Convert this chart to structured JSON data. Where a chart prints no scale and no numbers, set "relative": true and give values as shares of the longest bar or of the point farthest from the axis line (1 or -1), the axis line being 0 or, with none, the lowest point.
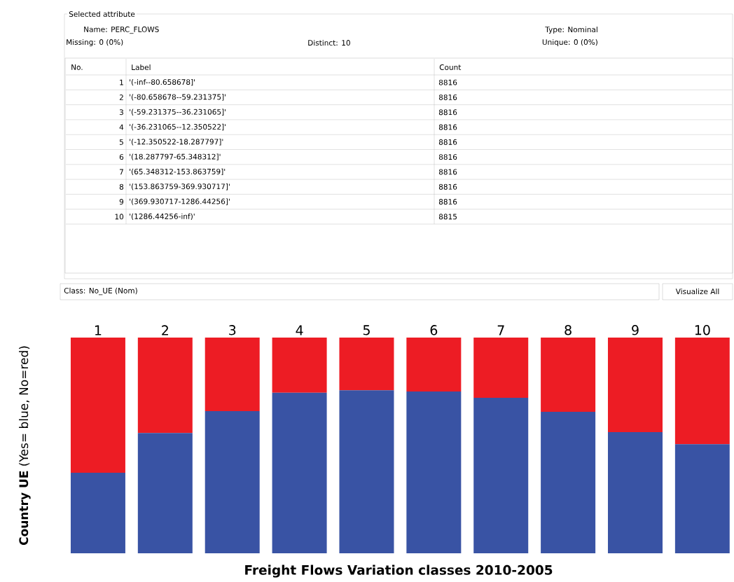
{
  "chart_data": [
    {
      "type": "heatmap",
      "title": "Selected attribute",
      "annotations": [
        "Name: PERC_FLOWS",
        "Type: Nominal",
        "Missing: 0 (0%)",
        "Distinct: 10",
        "Unique: 0 (0%)",
        "No.",
        "Label",
        "Class: No_UE (Nom)",
        "Visualize All"
      ],
      "categories": [
        "Count"
      ],
      "y_categories": [
        "1",
        "2",
        "3",
        "4",
        "5",
        "6",
        "7",
        "8",
        "9",
        "10"
      ],
      "y2_categories": [
        "'(-inf--80.658678]'",
        "'(-80.658678--59.231375]'",
        "'(-59.231375--36.231065]'",
        "'(-36.231065--12.350522]'",
        "'(-12.350522-18.287797]'",
        "'(18.287797-65.348312]'",
        "'(65.348312-153.863759]'",
        "'(153.863759-369.930717]'",
        "'(369.930717-1286.44256]'",
        "'(1286.44256-inf)'"
      ],
      "cells": [
        [
          8816
        ],
        [
          8816
        ],
        [
          8816
        ],
        [
          8816
        ],
        [
          8816
        ],
        [
          8816
        ],
        [
          8816
        ],
        [
          8816
        ],
        [
          8816
        ],
        [
          8815
        ]
      ],
      "data_labels": true
    },
    {
      "type": "bar",
      "stacked": true,
      "relative": true,
      "ylabel": "**Country UE** (Yes= blue, No=red)",
      "xlabel": "Freight Flows Variation classes 2010-2005",
      "categories": [
        "1",
        "2",
        "3",
        "4",
        "5",
        "6",
        "7",
        "8",
        "9",
        "10"
      ],
      "series": [
        {
          "color": "#3953a4",
          "values": [
            0.373,
            0.558,
            0.659,
            0.744,
            0.756,
            0.75,
            0.721,
            0.656,
            0.562,
            0.506
          ]
        },
        {
          "color": "#ed1c24",
          "values": [
            0.627,
            0.442,
            0.341,
            0.256,
            0.244,
            0.25,
            0.279,
            0.344,
            0.438,
            0.494
          ]
        }
      ]
    }
  ]
}
